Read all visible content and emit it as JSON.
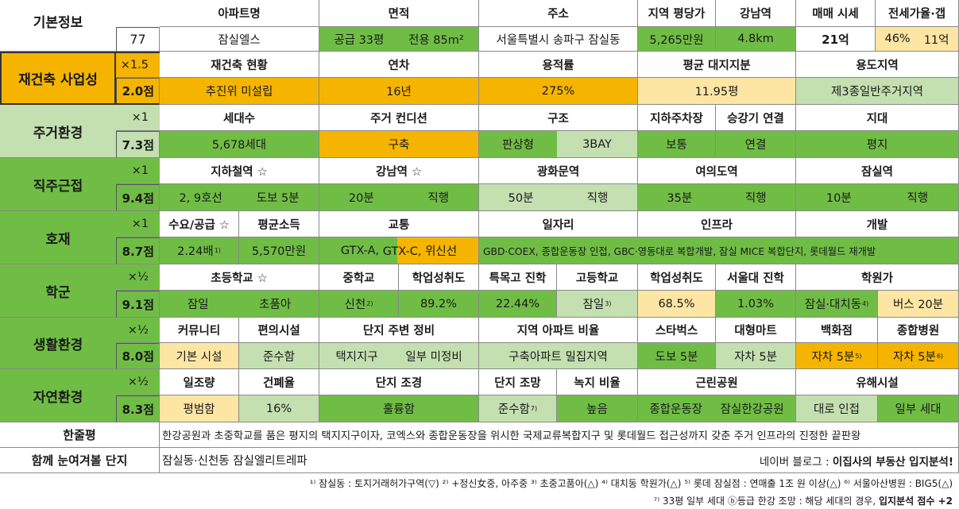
{
  "basic": {
    "label": "기본정보",
    "number": "77",
    "headers": [
      "아파트명",
      "면적",
      "주소",
      "지역 평당가",
      "강남역",
      "매매 시세",
      "전세가율·갭"
    ],
    "apt_name": "잠실엘스",
    "area_supply": "공급 33평",
    "area_exclusive": "전용 85m²",
    "address": "서울특별시 송파구 잠실동",
    "price_per_pyeong": "5,265만원",
    "gangnam_distance": "4.8km",
    "sale_price": "21억",
    "jeonse_ratio": "46%",
    "gap": "11억"
  },
  "rebuild": {
    "label": "재건축 사업성",
    "mult": "×1.5",
    "score": "2.0점",
    "headers": [
      "재건축 현황",
      "연차",
      "용적률",
      "평균 대지지분",
      "용도지역"
    ],
    "values": [
      "추진위 미설립",
      "16년",
      "275%",
      "11.95평",
      "제3종일반주거지역"
    ]
  },
  "living": {
    "label": "주거환경",
    "mult": "×1",
    "score": "7.3점",
    "headers": [
      "세대수",
      "주거 컨디션",
      "구조",
      "지하주차장",
      "승강기 연결",
      "지대"
    ],
    "values": [
      "5,678세대",
      "구축",
      "판상형",
      "3BAY",
      "보통",
      "연결",
      "평지"
    ]
  },
  "commute": {
    "label": "직주근접",
    "mult": "×1",
    "score": "9.4점",
    "headers": [
      "지하철역 ☆",
      "강남역 ☆",
      "광화문역",
      "여의도역",
      "잠실역"
    ],
    "values": [
      "2, 9호선",
      "도보 5분",
      "20분",
      "직행",
      "50분",
      "직행",
      "35분",
      "직행",
      "10분",
      "직행"
    ]
  },
  "positive": {
    "label": "호재",
    "mult": "×1",
    "score": "8.7점",
    "headers": [
      "수요/공급 ☆",
      "평균소득",
      "교통",
      "일자리",
      "인프라",
      "개발"
    ],
    "supply_demand": "2.24배",
    "supply_demand_note": "1)",
    "income": "5,570만원",
    "transport_a": "GTX-A, ",
    "transport_b": "GTX-C, 위신선",
    "jobs_etc": "GBD·COEX, 종합운동장 인접, GBC·영동대로 복합개발, 잠실 MICE 복합단지, 롯데월드 재개발"
  },
  "school": {
    "label": "학군",
    "mult": "×½",
    "score": "9.1점",
    "headers": [
      "초등학교 ☆",
      "중학교",
      "학업성취도",
      "특목고 진학",
      "고등학교",
      "학업성취도",
      "서울대 진학",
      "학원가"
    ],
    "elem1": "잠일",
    "elem2": "초품아",
    "middle": "신천",
    "middle_note": "2)",
    "mid_score": "89.2%",
    "special": "22.44%",
    "high": "잠일",
    "high_note": "3)",
    "high_score": "68.5%",
    "snu": "1.03%",
    "academy1": "잠실·대치동",
    "academy1_note": "4)",
    "academy2": "버스 20분"
  },
  "life": {
    "label": "생활환경",
    "mult": "×½",
    "score": "8.0점",
    "headers": [
      "커뮤니티",
      "편의시설",
      "단지 주변 정비",
      "지역 아파트 비율",
      "스타벅스",
      "대형마트",
      "백화점",
      "종합병원"
    ],
    "community": "기본 시설",
    "convenience": "준수함",
    "surround1": "택지지구",
    "surround2": "일부 미정비",
    "ratio": "구축아파트 밀집지역",
    "starbucks": "도보 5분",
    "mart": "자차 5분",
    "dept": "자차 5분",
    "dept_note": "5)",
    "hospital": "자차 5분",
    "hospital_note": "6)"
  },
  "nature": {
    "label": "자연환경",
    "mult": "×½",
    "score": "8.3점",
    "headers": [
      "일조량",
      "건폐율",
      "단지 조경",
      "단지 조망",
      "녹지 비율",
      "근린공원",
      "유해시설"
    ],
    "sun": "평범함",
    "coverage": "16%",
    "landscape": "훌륭함",
    "view": "준수함",
    "view_note": "7)",
    "green": "높음",
    "park1": "종합운동장",
    "park2": "잠실한강공원",
    "harm1": "대로 인접",
    "harm2": "일부 세대"
  },
  "summary": {
    "label": "한줄평",
    "text": "한강공원과 초중학교를 품은 평지의 택지지구이자, 코엑스와 종합운동장을 위시한 국제교류복합지구 및 롯데월드 접근성까지 갖춘 주거 인프라의 진정한 끝판왕"
  },
  "similar": {
    "label": "함께 눈여겨볼 단지",
    "text": "잠실동·신천동 잠실엘리트레파",
    "credit_prefix": "네이버 블로그 : ",
    "credit_bold": "이집사의 부동산 입지분석!"
  },
  "footnotes": {
    "line1": "¹⁾ 잠실동 : 토지거래허가구역(▽) ²⁾ +정신女중, 아주중 ³⁾ 초중고품아(△) ⁴⁾ 대치동 학원가(△) ⁵⁾ 롯데 잠실점 : 연매출 1조 원 이상(△) ⁶⁾ 서울아산병원 : BIG5(△)",
    "line2_plain": "⁷⁾ 33평 일부 세대 ⓑ등급 한강 조망 : 해당 세대의 경우, ",
    "line2_bold": "입지분석 점수 +2"
  },
  "colors": {
    "green": "#70bd45",
    "light_green": "#c4dfb0",
    "orange": "#f5b400",
    "yellow": "#fde5a3"
  }
}
